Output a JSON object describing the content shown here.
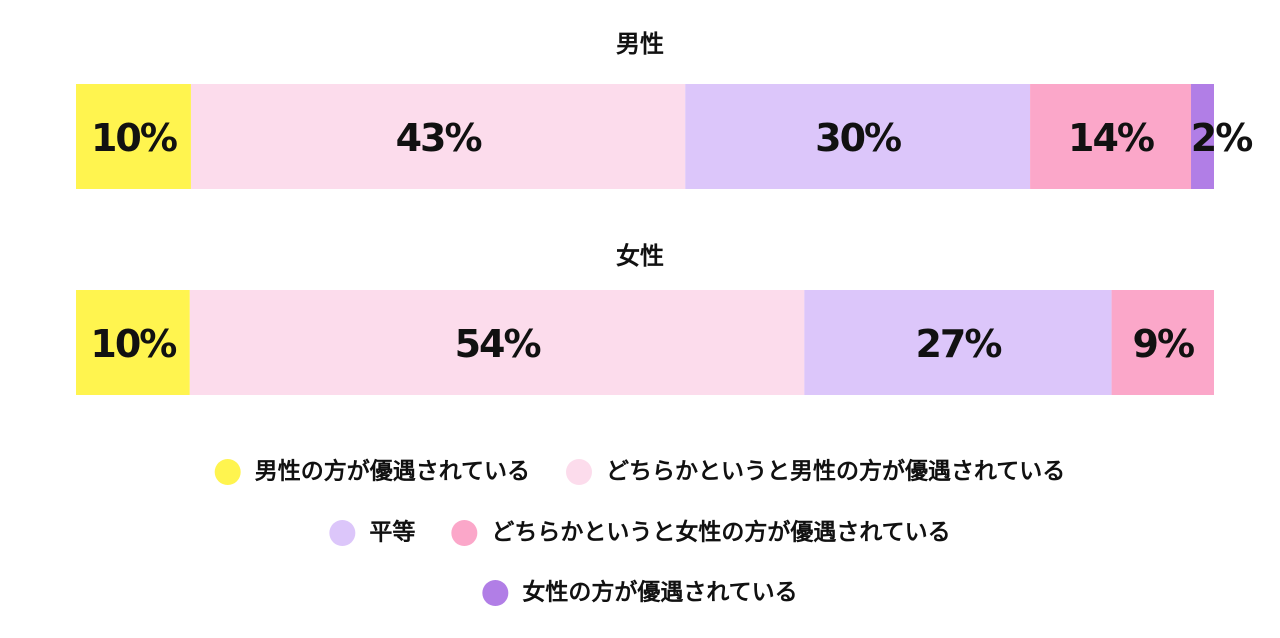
{
  "chart_data": {
    "type": "stacked-bar",
    "categories": [
      "男性",
      "女性"
    ],
    "series": [
      {
        "name": "男性の方が優遇されている",
        "color": "#fff44f",
        "values": [
          10,
          10
        ],
        "value_labels": [
          "10%",
          "10%"
        ]
      },
      {
        "name": "どちらかというと男性の方が優遇されている",
        "color": "#fcdcec",
        "values": [
          43,
          54
        ],
        "value_labels": [
          "43%",
          "54%"
        ]
      },
      {
        "name": "平等",
        "color": "#dcc6fa",
        "values": [
          30,
          27
        ],
        "value_labels": [
          "30%",
          "27%"
        ]
      },
      {
        "name": "どちらかというと女性の方が優遇されている",
        "color": "#fba7c9",
        "values": [
          14,
          9
        ],
        "value_labels": [
          "14%",
          "9%"
        ]
      },
      {
        "name": "女性の方が優遇されている",
        "color": "#b17ee6",
        "values": [
          2,
          0
        ],
        "value_labels": [
          "2%",
          null
        ]
      }
    ]
  }
}
